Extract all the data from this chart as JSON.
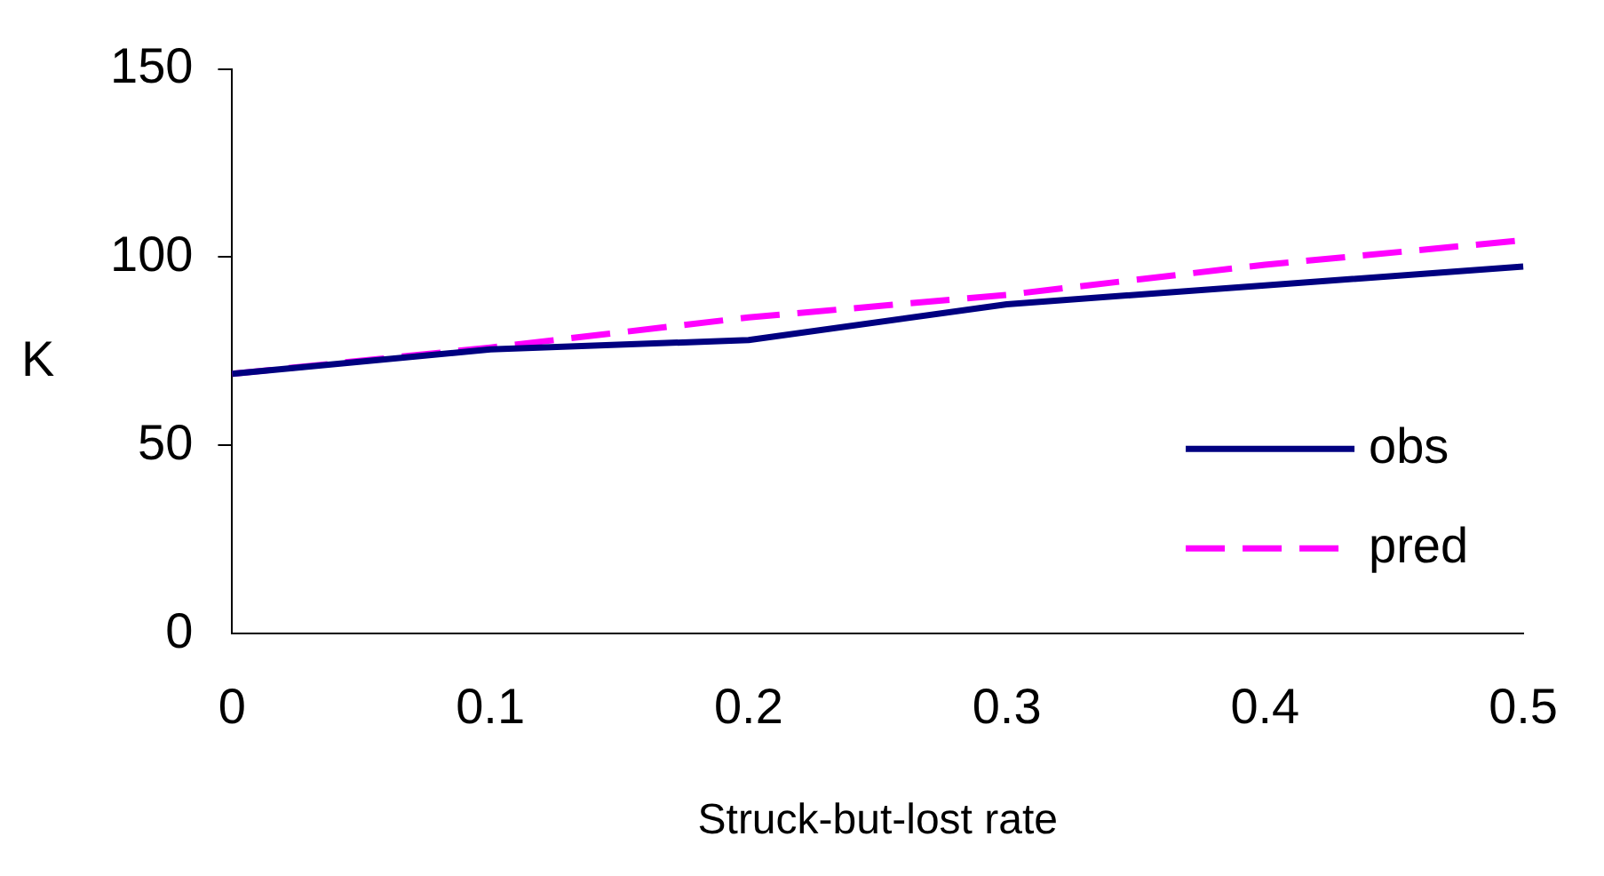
{
  "chart_data": {
    "type": "line",
    "xlabel": "Struck-but-lost rate",
    "ylabel": "K",
    "x": [
      0,
      0.1,
      0.2,
      0.3,
      0.4,
      0.5
    ],
    "series": [
      {
        "name": "obs",
        "color": "#000080",
        "values": [
          69,
          75.5,
          78,
          87.5,
          92.5,
          97.5
        ],
        "line_style": "solid"
      },
      {
        "name": "pred",
        "color": "#ff00ff",
        "values": [
          69,
          76,
          84,
          90,
          98,
          104.5
        ],
        "line_style": "dashed"
      }
    ],
    "xlim": [
      0,
      0.5
    ],
    "xticks": [
      0,
      0.1,
      0.2,
      0.3,
      0.4,
      0.5
    ],
    "ylim": [
      0,
      150
    ],
    "yticks": [
      0,
      50,
      100,
      150
    ],
    "grid": false,
    "legend": "bottom right",
    "marker": "none"
  }
}
